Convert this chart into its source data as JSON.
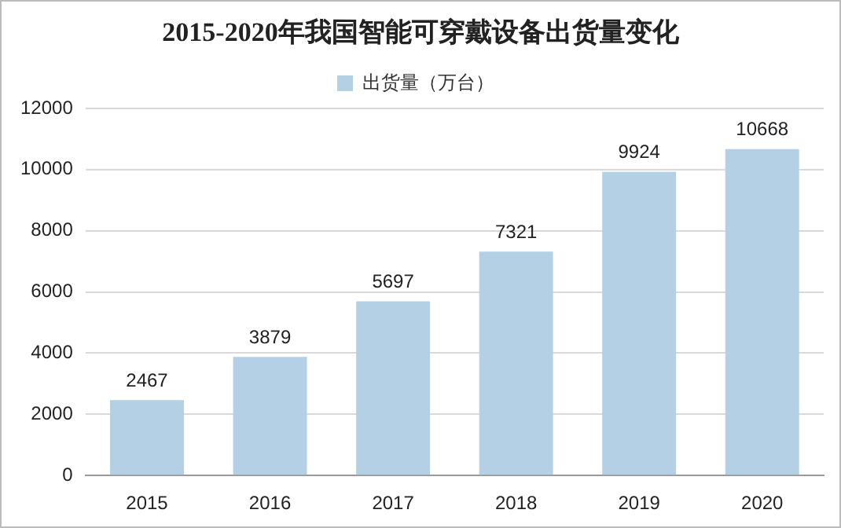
{
  "chart_data": {
    "type": "bar",
    "title": "2015-2020年我国智能可穿戴设备出货量变化",
    "categories": [
      "2015",
      "2016",
      "2017",
      "2018",
      "2019",
      "2020"
    ],
    "series": [
      {
        "name": "出货量（万台）",
        "color": "#b4d0e4",
        "values": [
          2467,
          3879,
          5697,
          7321,
          9924,
          10668
        ]
      }
    ],
    "ylim": [
      0,
      12000
    ],
    "yticks": [
      0,
      2000,
      4000,
      6000,
      8000,
      10000,
      12000
    ],
    "grid": "y",
    "legend": "top",
    "data_labels": true
  }
}
